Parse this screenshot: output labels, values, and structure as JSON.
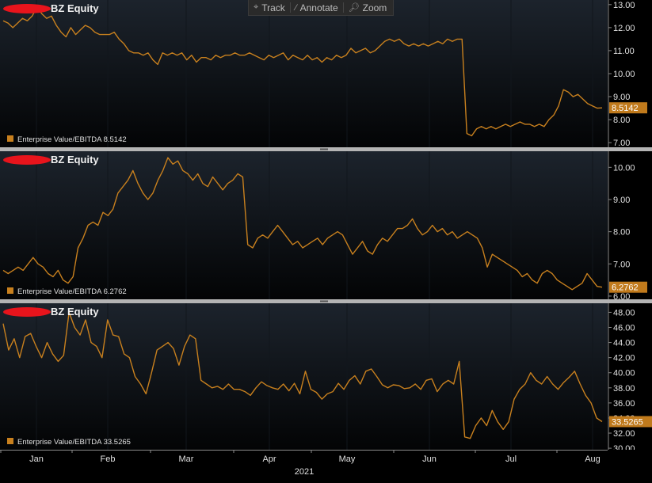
{
  "toolbar": {
    "track_label": "Track",
    "annotate_label": "Annotate",
    "zoom_label": "Zoom",
    "track_icon": "crosshair-icon",
    "annotate_icon": "pencil-icon",
    "zoom_icon": "magnifier-icon"
  },
  "colors": {
    "background": "#000000",
    "line": "#c8801e",
    "value_tag": "#c07a1c",
    "text": "#e6e6e6"
  },
  "chart_data": {
    "type": "line",
    "x_labels": [
      "Jan",
      "Feb",
      "Mar",
      "Apr",
      "May",
      "Jun",
      "Jul",
      "Aug"
    ],
    "year_label": "2021",
    "panels": [
      {
        "title": "BZ Equity",
        "legend_label": "Enterprise Value/EBITDA",
        "last_value": "8.5142",
        "ylim": [
          6.8,
          13.2
        ],
        "y_ticks": [
          "13.00",
          "12.00",
          "11.00",
          "10.00",
          "9.00",
          "8.00",
          "7.00"
        ],
        "y_tick_values": [
          13,
          12,
          11,
          10,
          9,
          8,
          7
        ],
        "values": [
          12.3,
          12.2,
          12.0,
          12.2,
          12.4,
          12.3,
          12.5,
          12.9,
          12.6,
          12.4,
          12.5,
          12.1,
          11.8,
          11.6,
          12.0,
          11.7,
          11.9,
          12.1,
          12.0,
          11.8,
          11.7,
          11.7,
          11.7,
          11.8,
          11.5,
          11.3,
          11.0,
          10.9,
          10.9,
          10.8,
          10.9,
          10.6,
          10.4,
          10.9,
          10.8,
          10.9,
          10.8,
          10.9,
          10.6,
          10.8,
          10.5,
          10.7,
          10.7,
          10.6,
          10.8,
          10.7,
          10.8,
          10.8,
          10.9,
          10.8,
          10.8,
          10.9,
          10.8,
          10.7,
          10.6,
          10.8,
          10.7,
          10.8,
          10.9,
          10.6,
          10.8,
          10.7,
          10.6,
          10.8,
          10.6,
          10.7,
          10.5,
          10.7,
          10.6,
          10.8,
          10.7,
          10.8,
          11.1,
          10.9,
          11.0,
          11.1,
          10.9,
          11.0,
          11.2,
          11.4,
          11.5,
          11.4,
          11.5,
          11.3,
          11.2,
          11.3,
          11.2,
          11.3,
          11.2,
          11.3,
          11.4,
          11.3,
          11.5,
          11.4,
          11.5,
          11.5,
          7.4,
          7.3,
          7.6,
          7.7,
          7.6,
          7.7,
          7.6,
          7.7,
          7.8,
          7.7,
          7.8,
          7.9,
          7.8,
          7.8,
          7.7,
          7.8,
          7.7,
          8.0,
          8.2,
          8.6,
          9.3,
          9.2,
          9.0,
          9.1,
          8.9,
          8.7,
          8.6,
          8.5,
          8.5142
        ]
      },
      {
        "title": "BZ Equity",
        "legend_label": "Enterprise Value/EBITDA",
        "last_value": "6.2762",
        "ylim": [
          5.9,
          10.5
        ],
        "y_ticks": [
          "10.00",
          "9.00",
          "8.00",
          "7.00",
          "6.00"
        ],
        "y_tick_values": [
          10,
          9,
          8,
          7,
          6
        ],
        "values": [
          6.8,
          6.7,
          6.8,
          6.9,
          6.8,
          7.0,
          7.2,
          7.0,
          6.9,
          6.7,
          6.6,
          6.8,
          6.5,
          6.4,
          6.6,
          7.5,
          7.8,
          8.2,
          8.3,
          8.2,
          8.6,
          8.5,
          8.7,
          9.2,
          9.4,
          9.6,
          9.9,
          9.5,
          9.2,
          9.0,
          9.2,
          9.6,
          9.9,
          10.3,
          10.1,
          10.2,
          9.9,
          9.8,
          9.6,
          9.8,
          9.5,
          9.4,
          9.7,
          9.5,
          9.3,
          9.5,
          9.6,
          9.8,
          9.7,
          7.6,
          7.5,
          7.8,
          7.9,
          7.8,
          8.0,
          8.2,
          8.0,
          7.8,
          7.6,
          7.7,
          7.5,
          7.6,
          7.7,
          7.8,
          7.6,
          7.8,
          7.9,
          8.0,
          7.9,
          7.6,
          7.3,
          7.5,
          7.7,
          7.4,
          7.3,
          7.6,
          7.8,
          7.7,
          7.9,
          8.1,
          8.1,
          8.2,
          8.4,
          8.1,
          7.9,
          8.0,
          8.2,
          8.0,
          8.1,
          7.9,
          8.0,
          7.8,
          7.9,
          8.0,
          7.9,
          7.8,
          7.5,
          6.9,
          7.3,
          7.2,
          7.1,
          7.0,
          6.9,
          6.8,
          6.6,
          6.7,
          6.5,
          6.4,
          6.7,
          6.8,
          6.7,
          6.5,
          6.4,
          6.3,
          6.2,
          6.3,
          6.4,
          6.7,
          6.5,
          6.3,
          6.2762
        ]
      },
      {
        "title": "BZ Equity",
        "legend_label": "Enterprise Value/EBITDA",
        "last_value": "33.5265",
        "ylim": [
          29.8,
          49.2
        ],
        "y_ticks": [
          "48.00",
          "46.00",
          "44.00",
          "42.00",
          "40.00",
          "38.00",
          "36.00",
          "34.00",
          "32.00",
          "30.00"
        ],
        "y_tick_values": [
          48,
          46,
          44,
          42,
          40,
          38,
          36,
          34,
          32,
          30
        ],
        "values": [
          46.5,
          43.0,
          44.5,
          42.0,
          44.8,
          45.2,
          43.5,
          42.0,
          44.0,
          42.5,
          41.5,
          42.3,
          48.0,
          46.0,
          45.0,
          47.0,
          44.0,
          43.5,
          42.0,
          47.0,
          45.0,
          44.8,
          42.5,
          42.0,
          39.5,
          38.5,
          37.2,
          40.0,
          43.0,
          43.5,
          44.0,
          43.2,
          41.0,
          43.5,
          45.0,
          44.5,
          39.0,
          38.5,
          38.0,
          38.2,
          37.8,
          38.5,
          37.8,
          37.8,
          37.5,
          37.0,
          38.0,
          38.8,
          38.3,
          38.0,
          37.8,
          38.5,
          37.6,
          38.6,
          37.2,
          40.2,
          37.8,
          37.4,
          36.5,
          37.2,
          37.5,
          38.6,
          37.8,
          39.0,
          39.6,
          38.5,
          40.2,
          40.5,
          39.5,
          38.4,
          38.0,
          38.4,
          38.3,
          37.9,
          38.0,
          38.5,
          37.8,
          39.0,
          39.2,
          37.5,
          38.5,
          39.0,
          38.5,
          41.5,
          31.5,
          31.3,
          33.0,
          34.0,
          33.0,
          35.0,
          33.5,
          32.5,
          33.5,
          36.5,
          37.8,
          38.5,
          40.0,
          39.0,
          38.5,
          39.5,
          38.5,
          37.8,
          38.7,
          39.4,
          40.2,
          38.5,
          37.0,
          36.0,
          34.0,
          33.5265
        ]
      }
    ]
  }
}
